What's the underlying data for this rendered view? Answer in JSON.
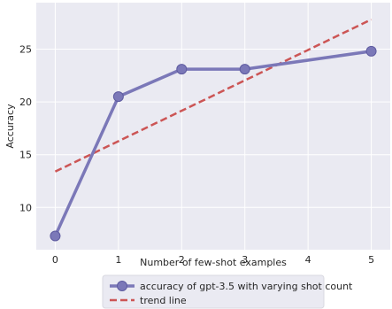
{
  "chart_data": {
    "type": "line",
    "x": [
      0,
      1,
      2,
      3,
      4,
      5
    ],
    "series": [
      {
        "name": "accuracy of gpt-3.5 with varying shot count",
        "x": [
          0,
          1,
          2,
          3,
          5
        ],
        "values": [
          7.3,
          20.5,
          23.1,
          23.1,
          24.8
        ],
        "color": "#7b78b8"
      },
      {
        "name": "trend line",
        "x": [
          0,
          5
        ],
        "values": [
          13.4,
          27.8
        ],
        "color": "#cc5555",
        "style": "dashed"
      }
    ],
    "xlabel": "Number of few-shot examples",
    "ylabel": "Accuracy",
    "xlim": [
      -0.3,
      5.3
    ],
    "ylim": [
      6.0,
      29.4
    ],
    "xticks": [
      0,
      1,
      2,
      3,
      4,
      5
    ],
    "yticks": [
      10,
      15,
      20,
      25
    ],
    "grid": true,
    "legend": "bottom-center",
    "background": "#eaeaf2"
  }
}
